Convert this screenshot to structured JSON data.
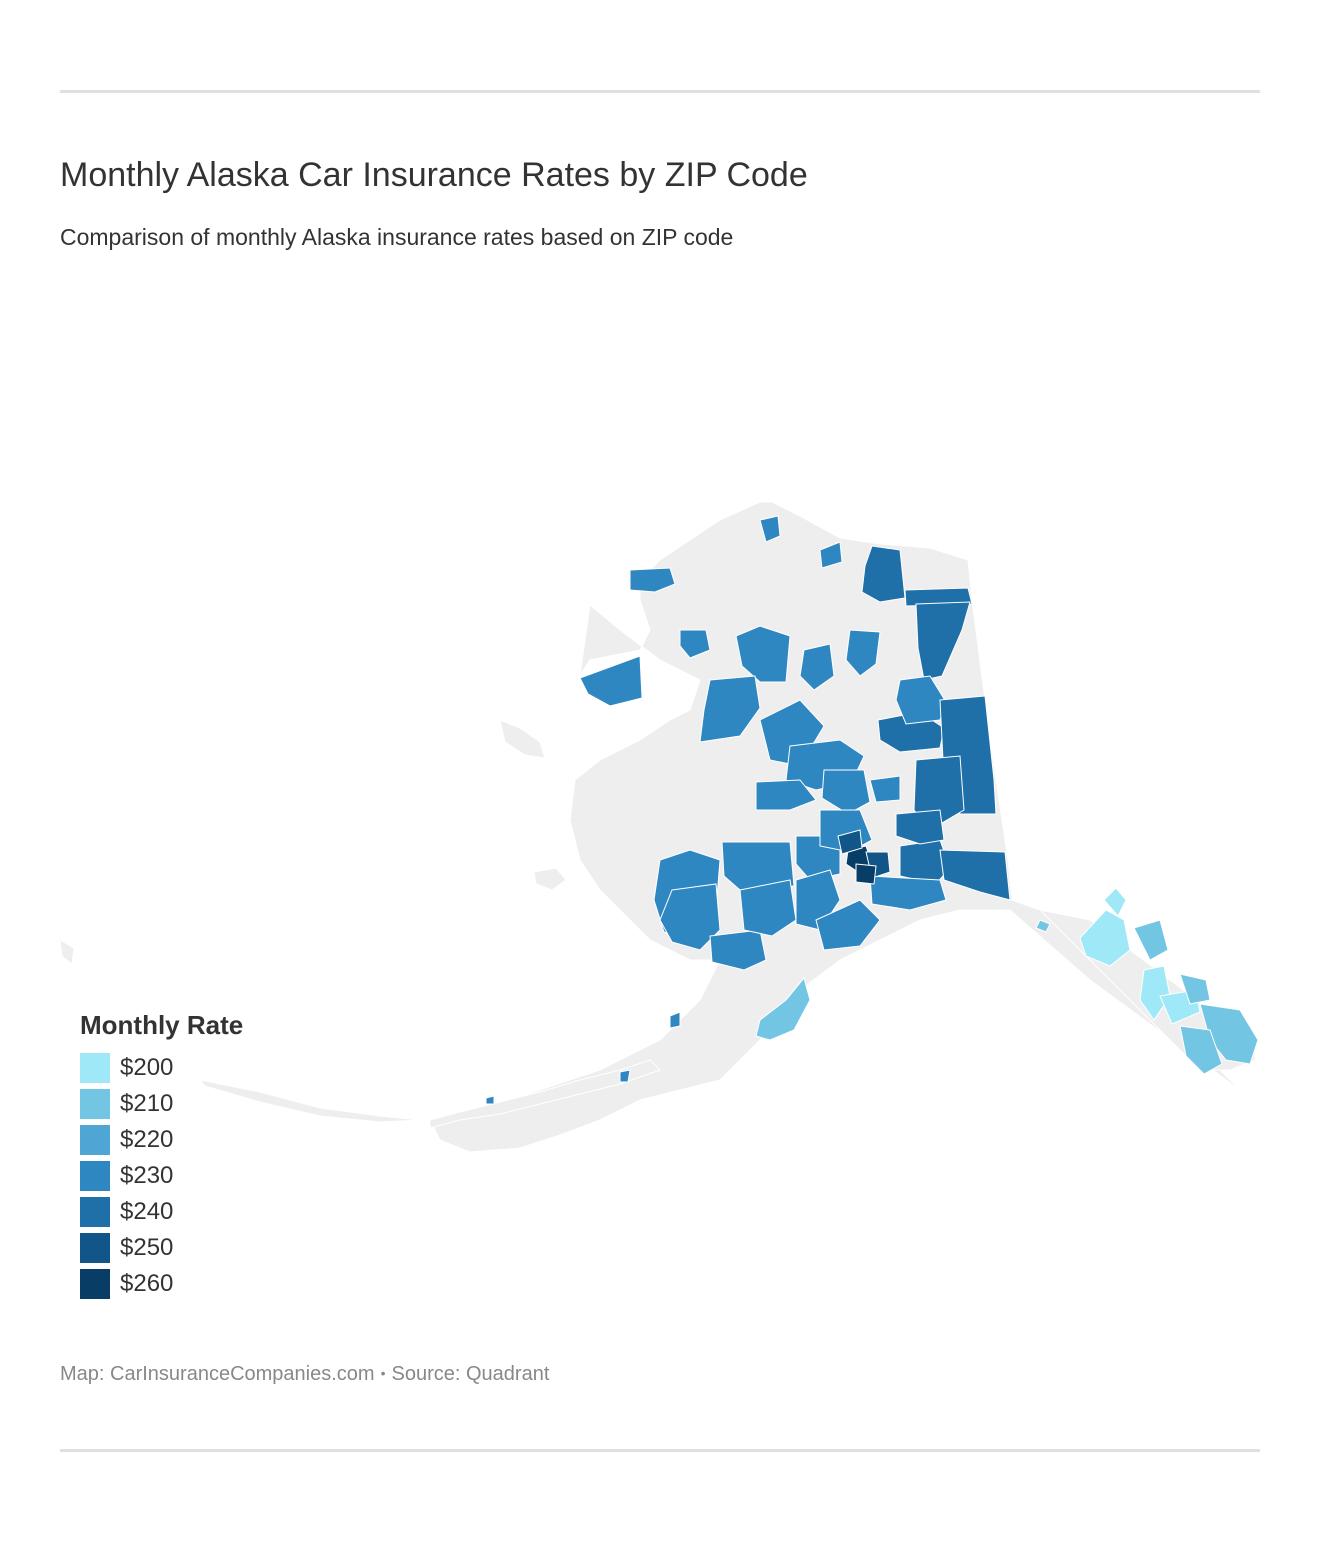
{
  "header": {
    "title": "Monthly Alaska Car Insurance Rates by ZIP Code",
    "subtitle": "Comparison of monthly Alaska insurance rates based on ZIP code"
  },
  "legend": {
    "title": "Monthly Rate",
    "items": [
      {
        "label": "$200",
        "color": "#9ee8f7"
      },
      {
        "label": "$210",
        "color": "#73c6e3"
      },
      {
        "label": "$220",
        "color": "#4fa6d5"
      },
      {
        "label": "$230",
        "color": "#2f87c1"
      },
      {
        "label": "$240",
        "color": "#1f6fa8"
      },
      {
        "label": "$250",
        "color": "#125588"
      },
      {
        "label": "$260",
        "color": "#083d66"
      }
    ]
  },
  "map": {
    "region": "Alaska",
    "no_data_color": "#eeeeee"
  },
  "footer": {
    "map_credit": "Map: CarInsuranceCompanies.com",
    "separator": "•",
    "source": "Source: Quadrant"
  }
}
